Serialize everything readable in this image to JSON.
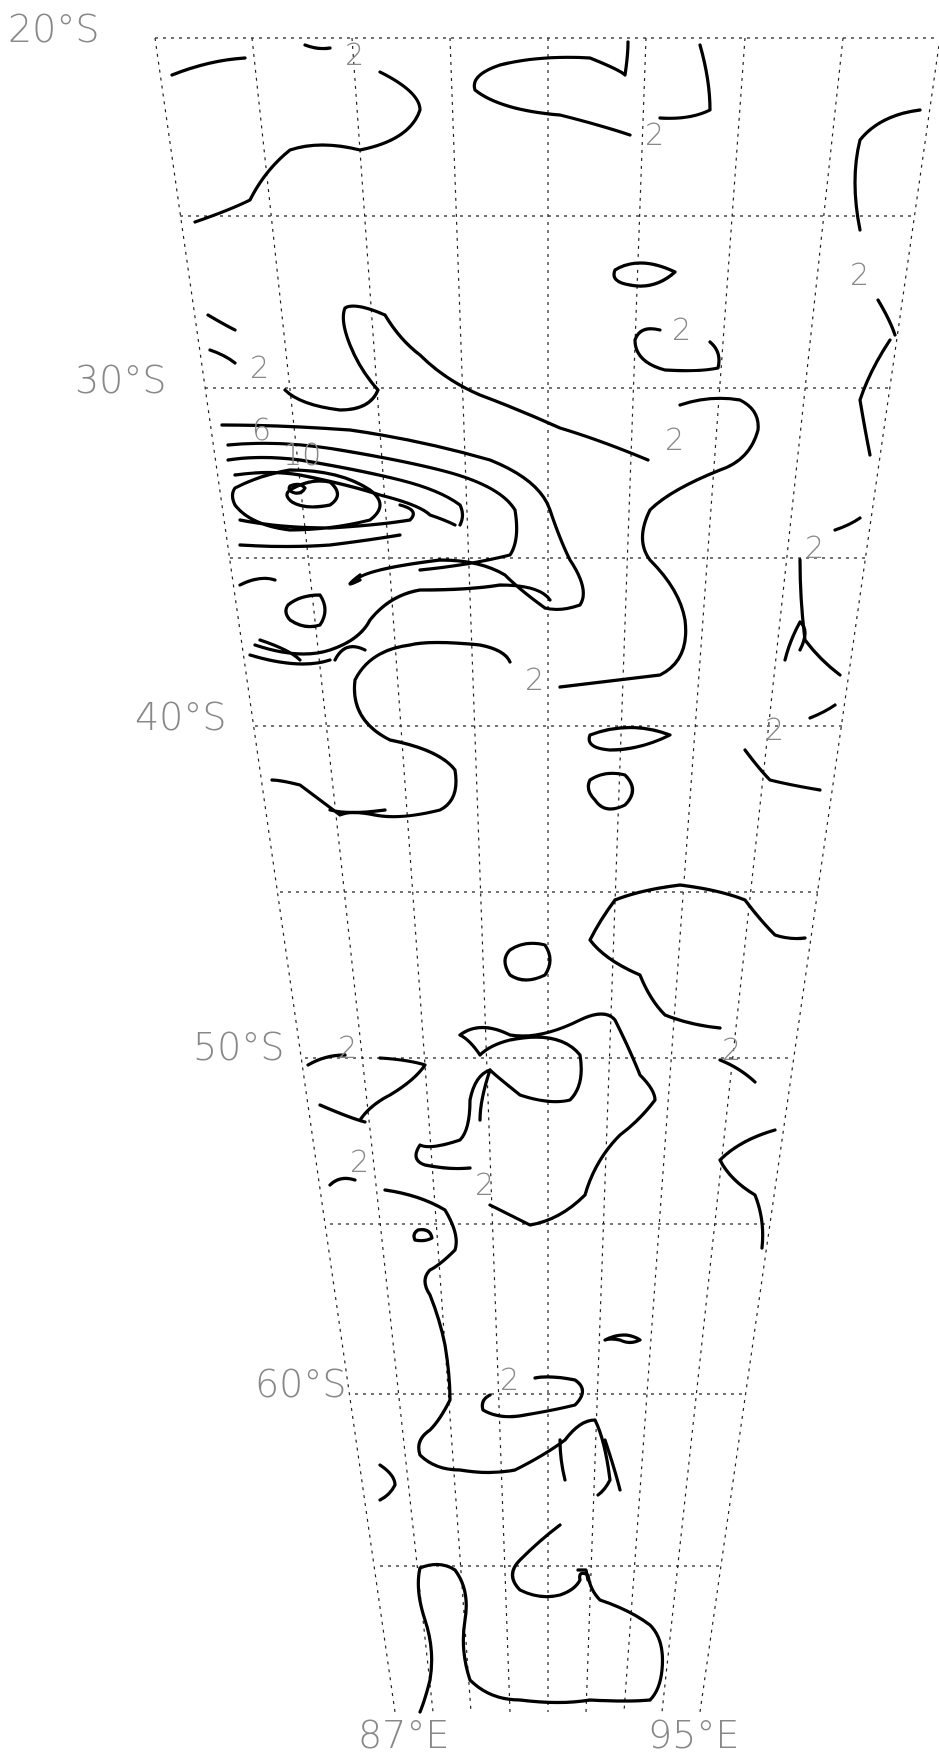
{
  "map": {
    "latitude_labels": [
      "20°S",
      "30°S",
      "40°S",
      "50°S",
      "60°S"
    ],
    "longitude_labels": [
      "87°E",
      "95°E"
    ],
    "contour_labels": [
      "2",
      "2",
      "2",
      "2",
      "2",
      "2",
      "2",
      "2",
      "2",
      "2",
      "2",
      "2",
      "2",
      "2",
      "6",
      "10"
    ]
  }
}
